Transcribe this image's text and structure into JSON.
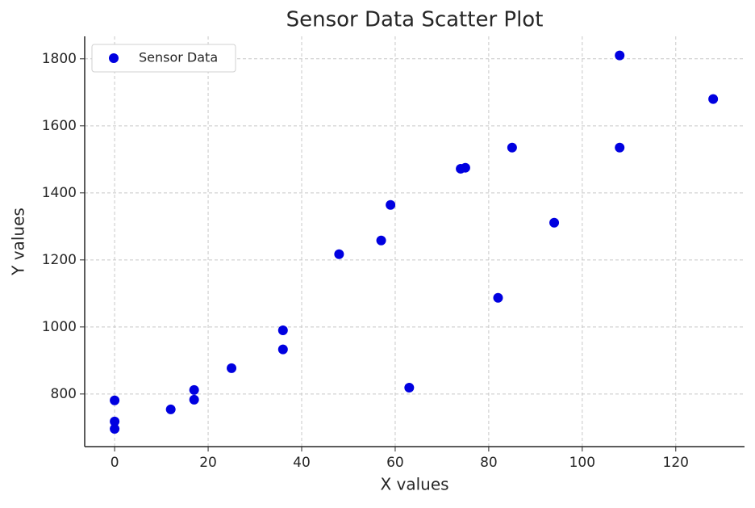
{
  "chart_data": {
    "type": "scatter",
    "title": "Sensor Data Scatter Plot",
    "x_label": "X values",
    "y_label": "Y values",
    "series": [
      {
        "name": "Sensor Data",
        "color": "#0000e0",
        "x": [
          0,
          0,
          0,
          12,
          17,
          17,
          25,
          36,
          36,
          48,
          57,
          59,
          63,
          74,
          75,
          82,
          85,
          94,
          108,
          108,
          128
        ],
        "values": [
          781,
          718,
          696,
          754,
          812,
          783,
          877,
          990,
          933,
          1217,
          1258,
          1364,
          819,
          1472,
          1475,
          1087,
          1535,
          1311,
          1810,
          1535,
          1680
        ]
      }
    ],
    "xlim": [
      -6.4,
      134.7
    ],
    "ylim": [
      643,
      1867
    ],
    "xticks": [
      0,
      20,
      40,
      60,
      80,
      100,
      120
    ],
    "yticks": [
      800,
      1000,
      1200,
      1400,
      1600,
      1800
    ],
    "grid": true,
    "legend": "upper left"
  }
}
